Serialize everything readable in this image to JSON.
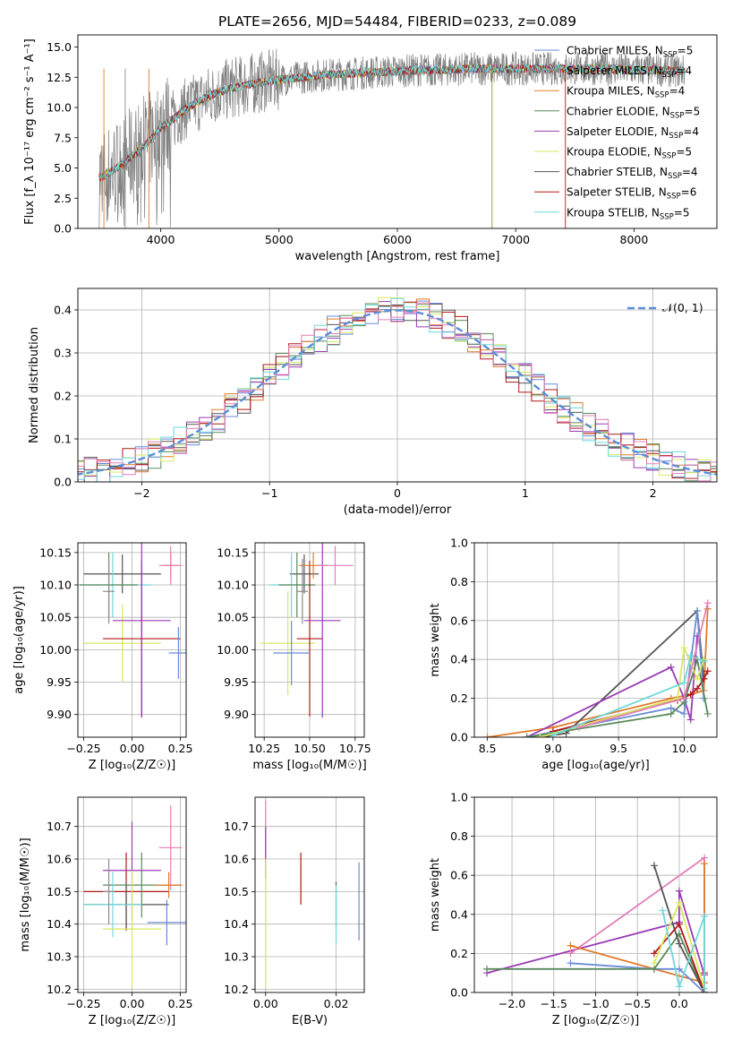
{
  "title": "PLATE=2656, MJD=54484, FIBERID=0233, z=0.089",
  "colors": {
    "Chabrier MILES": "#6a8cd6",
    "Salpeter MILES": "#8c8c8c",
    "Kroupa MILES": "#e07b2a",
    "Chabrier ELODIE": "#5a8a5a",
    "Salpeter ELODIE": "#9a3cb5",
    "Kroupa ELODIE": "#d8e862",
    "Chabrier STELIB": "#555555",
    "Salpeter STELIB": "#b01818",
    "Kroupa STELIB": "#6fd8dc",
    "pink": "#e27fb8",
    "gaussian": "#5b8fd8"
  },
  "chart_data": [
    {
      "id": "spectrum",
      "type": "line",
      "title": "PLATE=2656, MJD=54484, FIBERID=0233, z=0.089",
      "xlabel": "wavelength [Angstrom, rest frame]",
      "ylabel": "Flux [f_λ 10⁻¹⁷ erg cm⁻² s⁻¹ A⁻¹]",
      "xlim": [
        3300,
        8700
      ],
      "ylim": [
        0,
        16
      ],
      "xticks": [
        "4000",
        "5000",
        "6000",
        "7000",
        "8000"
      ],
      "yticks": [
        "0.0",
        "2.5",
        "5.0",
        "7.5",
        "10.0",
        "12.5",
        "15.0"
      ],
      "grid": false,
      "legend_position": "right",
      "legend": [
        {
          "name": "Chabrier MILES",
          "nssp": "5"
        },
        {
          "name": "Salpeter MILES",
          "nssp": "4"
        },
        {
          "name": "Kroupa MILES",
          "nssp": "4"
        },
        {
          "name": "Chabrier ELODIE",
          "nssp": "5"
        },
        {
          "name": "Salpeter ELODIE",
          "nssp": "4"
        },
        {
          "name": "Kroupa ELODIE",
          "nssp": "5"
        },
        {
          "name": "Chabrier STELIB",
          "nssp": "4"
        },
        {
          "name": "Salpeter STELIB",
          "nssp": "6"
        },
        {
          "name": "Kroupa STELIB",
          "nssp": "5"
        }
      ],
      "continuum_x": [
        3500,
        3600,
        3700,
        3800,
        3900,
        4000,
        4100,
        4200,
        4300,
        4400,
        4500,
        4600,
        4700,
        4800,
        4900,
        5000,
        5200,
        5400,
        5600,
        5800,
        6000,
        6200,
        6400,
        6600,
        6800,
        7000,
        7200,
        7400,
        7600,
        7800,
        8000,
        8200,
        8400
      ],
      "continuum_y": [
        4.2,
        4.8,
        5.5,
        6.3,
        7.2,
        8.3,
        9.0,
        9.8,
        10.4,
        10.9,
        11.3,
        11.6,
        11.8,
        12.0,
        12.2,
        12.3,
        12.5,
        12.7,
        12.8,
        12.9,
        13.0,
        13.1,
        13.1,
        13.2,
        13.2,
        13.2,
        13.2,
        13.2,
        13.2,
        13.2,
        13.1,
        13.1,
        13.0
      ]
    },
    {
      "id": "residuals",
      "type": "line",
      "xlabel": "(data-model)/error",
      "ylabel": "Normed distribution",
      "xlim": [
        -2.5,
        2.5
      ],
      "ylim": [
        0,
        0.45
      ],
      "xticks": [
        "−2",
        "−1",
        "0",
        "1",
        "2"
      ],
      "yticks": [
        "0.0",
        "0.1",
        "0.2",
        "0.3",
        "0.4"
      ],
      "grid": true,
      "legend_position": "top-right",
      "legend": [
        "𝒩(0, 1)"
      ],
      "series": [
        {
          "name": "𝒩(0, 1)",
          "style": "dashed",
          "function": "standard normal pdf"
        }
      ]
    },
    {
      "id": "age-vs-Z",
      "type": "scatter",
      "xlabel": "Z [log₁₀(Z/Z☉)]",
      "ylabel": "age  [log₁₀(age/yr)]",
      "xlim": [
        -0.28,
        0.28
      ],
      "ylim": [
        9.865,
        10.165
      ],
      "xticks": [
        "−0.25",
        "0.00",
        "0.25"
      ],
      "yticks": [
        "9.90",
        "9.95",
        "10.00",
        "10.05",
        "10.10",
        "10.15"
      ],
      "grid": true,
      "points": [
        {
          "series": "Chabrier STELIB",
          "x": -0.05,
          "y": 10.117,
          "xerr": 0.2,
          "yerr": 0.03
        },
        {
          "series": "Kroupa STELIB",
          "x": -0.1,
          "y": 10.1,
          "xerr": 0.2,
          "yerr": 0.05
        },
        {
          "series": "Chabrier ELODIE",
          "x": -0.12,
          "y": 10.1,
          "xerr": 0.15,
          "yerr": 0.05
        },
        {
          "series": "Kroupa ELODIE",
          "x": -0.05,
          "y": 10.01,
          "xerr": 0.2,
          "yerr": 0.06
        },
        {
          "series": "Salpeter STELIB",
          "x": 0.05,
          "y": 10.017,
          "xerr": 0.2,
          "yerr": 0.12
        },
        {
          "series": "Salpeter ELODIE",
          "x": 0.05,
          "y": 10.045,
          "xerr": 0.15,
          "yerr": 0.15
        },
        {
          "series": "Chabrier MILES",
          "x": 0.24,
          "y": 9.995,
          "xerr": 0.05,
          "yerr": 0.04
        },
        {
          "series": "Kroupa MILES",
          "x": 0.2,
          "y": 10.13,
          "xerr": 0.04,
          "yerr": 0.02
        },
        {
          "series": "pink",
          "x": 0.2,
          "y": 10.13,
          "xerr": 0.06,
          "yerr": 0.03
        },
        {
          "series": "Salpeter MILES",
          "x": -0.12,
          "y": 10.09,
          "xerr": 0.03,
          "yerr": 0.05
        }
      ]
    },
    {
      "id": "age-vs-mass",
      "type": "scatter",
      "xlabel": "mass [log₁₀(M/M☉)]",
      "ylabel": "",
      "xlim": [
        10.2,
        10.8
      ],
      "ylim": [
        9.865,
        10.165
      ],
      "xticks": [
        "10.25",
        "10.50",
        "10.75"
      ],
      "yticks": [
        "9.90",
        "9.95",
        "10.00",
        "10.05",
        "10.10",
        "10.15"
      ],
      "grid": true,
      "points": [
        {
          "series": "Chabrier STELIB",
          "x": 10.47,
          "y": 10.117,
          "xerr": 0.08,
          "yerr": 0.03
        },
        {
          "series": "Kroupa STELIB",
          "x": 10.4,
          "y": 10.1,
          "xerr": 0.12,
          "yerr": 0.05
        },
        {
          "series": "Chabrier ELODIE",
          "x": 10.43,
          "y": 10.1,
          "xerr": 0.1,
          "yerr": 0.05
        },
        {
          "series": "Kroupa ELODIE",
          "x": 10.38,
          "y": 10.01,
          "xerr": 0.15,
          "yerr": 0.08
        },
        {
          "series": "Salpeter STELIB",
          "x": 10.5,
          "y": 10.017,
          "xerr": 0.07,
          "yerr": 0.12
        },
        {
          "series": "Salpeter ELODIE",
          "x": 10.57,
          "y": 10.045,
          "xerr": 0.1,
          "yerr": 0.15
        },
        {
          "series": "Chabrier MILES",
          "x": 10.4,
          "y": 9.995,
          "xerr": 0.1,
          "yerr": 0.05
        },
        {
          "series": "Kroupa MILES",
          "x": 10.52,
          "y": 10.13,
          "xerr": 0.08,
          "yerr": 0.02
        },
        {
          "series": "pink",
          "x": 10.64,
          "y": 10.13,
          "xerr": 0.1,
          "yerr": 0.03
        },
        {
          "series": "Salpeter MILES",
          "x": 10.46,
          "y": 10.09,
          "xerr": 0.03,
          "yerr": 0.05
        }
      ]
    },
    {
      "id": "weight-vs-age",
      "type": "line",
      "xlabel": "age  [log₁₀(age/yr)]",
      "ylabel": "mass weight",
      "xlim": [
        8.4,
        10.25
      ],
      "ylim": [
        0,
        1.0
      ],
      "xticks": [
        "8.5",
        "9.0",
        "9.5",
        "10.0"
      ],
      "yticks": [
        "0.0",
        "0.2",
        "0.4",
        "0.6",
        "0.8",
        "1.0"
      ],
      "grid": true,
      "series": [
        {
          "name": "Kroupa MILES",
          "x": [
            8.5,
            9.0,
            9.9,
            10.05,
            10.15,
            10.18
          ],
          "y": [
            0.0,
            0.05,
            0.2,
            0.22,
            0.24,
            0.66
          ]
        },
        {
          "name": "Chabrier STELIB",
          "x": [
            8.9,
            9.1,
            10.1,
            10.15
          ],
          "y": [
            0.0,
            0.02,
            0.65,
            0.3
          ]
        },
        {
          "name": "Salpeter ELODIE",
          "x": [
            8.8,
            9.9,
            10.0,
            10.05,
            10.1
          ],
          "y": [
            0.0,
            0.36,
            0.2,
            0.09,
            0.52
          ]
        },
        {
          "name": "Chabrier MILES",
          "x": [
            8.8,
            9.9,
            10.0,
            10.1,
            10.15
          ],
          "y": [
            0.0,
            0.15,
            0.12,
            0.65,
            0.2
          ]
        },
        {
          "name": "Salpeter STELIB",
          "x": [
            9.0,
            9.95,
            10.05,
            10.1,
            10.15,
            10.18
          ],
          "y": [
            0.03,
            0.19,
            0.22,
            0.25,
            0.3,
            0.34
          ]
        },
        {
          "name": "Chabrier ELODIE",
          "x": [
            8.8,
            9.9,
            10.0,
            10.1,
            10.18
          ],
          "y": [
            0.0,
            0.12,
            0.18,
            0.4,
            0.12
          ]
        },
        {
          "name": "Kroupa ELODIE",
          "x": [
            8.9,
            9.95,
            10.0,
            10.1,
            10.15
          ],
          "y": [
            0.0,
            0.2,
            0.46,
            0.3,
            0.4
          ]
        },
        {
          "name": "Kroupa STELIB",
          "x": [
            9.0,
            10.0,
            10.05,
            10.15
          ],
          "y": [
            0.01,
            0.28,
            0.42,
            0.39
          ]
        },
        {
          "name": "pink",
          "x": [
            9.2,
            10.0,
            10.18
          ],
          "y": [
            0.05,
            0.2,
            0.69
          ]
        }
      ]
    },
    {
      "id": "mass-vs-Z",
      "type": "scatter",
      "xlabel": "Z [log₁₀(Z/Z☉)]",
      "ylabel": "mass [log₁₀(M/M☉)]",
      "xlim": [
        -0.28,
        0.28
      ],
      "ylim": [
        10.19,
        10.79
      ],
      "xticks": [
        "−0.25",
        "0.00",
        "0.25"
      ],
      "yticks": [
        "10.2",
        "10.3",
        "10.4",
        "10.5",
        "10.6",
        "10.7"
      ],
      "grid": true,
      "points": [
        {
          "series": "Salpeter STELIB",
          "x": -0.03,
          "y": 10.5,
          "xerr": 0.22,
          "yerr": 0.12
        },
        {
          "series": "Chabrier STELIB",
          "x": -0.03,
          "y": 10.46,
          "xerr": 0.22,
          "yerr": 0.07
        },
        {
          "series": "Chabrier ELODIE",
          "x": 0.05,
          "y": 10.52,
          "xerr": 0.2,
          "yerr": 0.1
        },
        {
          "series": "Kroupa STELIB",
          "x": -0.1,
          "y": 10.46,
          "xerr": 0.15,
          "yerr": 0.1
        },
        {
          "series": "Salpeter ELODIE",
          "x": 0.0,
          "y": 10.565,
          "xerr": 0.15,
          "yerr": 0.15
        },
        {
          "series": "Kroupa ELODIE",
          "x": 0.0,
          "y": 10.385,
          "xerr": 0.15,
          "yerr": 0.18
        },
        {
          "series": "Chabrier MILES",
          "x": 0.18,
          "y": 10.405,
          "xerr": 0.1,
          "yerr": 0.07
        },
        {
          "series": "Kroupa MILES",
          "x": 0.19,
          "y": 10.52,
          "xerr": 0.07,
          "yerr": 0.04
        },
        {
          "series": "pink",
          "x": 0.2,
          "y": 10.635,
          "xerr": 0.06,
          "yerr": 0.13
        },
        {
          "series": "Salpeter MILES",
          "x": -0.12,
          "y": 10.5,
          "xerr": 0.03,
          "yerr": 0.1
        }
      ]
    },
    {
      "id": "mass-vs-EBV",
      "type": "scatter",
      "xlabel": "E(B-V)",
      "ylabel": "",
      "xlim": [
        -0.003,
        0.028
      ],
      "ylim": [
        10.19,
        10.79
      ],
      "xticks": [
        "0.00",
        "0.02"
      ],
      "yticks": [
        "10.2",
        "10.3",
        "10.4",
        "10.5",
        "10.6",
        "10.7"
      ],
      "grid": true,
      "points": [
        {
          "series": "pink",
          "x": 0.0,
          "y": 10.68,
          "yerr": 0.1
        },
        {
          "series": "Salpeter ELODIE",
          "x": 0.0,
          "y": 10.62,
          "yerr": 0.08
        },
        {
          "series": "Kroupa ELODIE",
          "x": 0.0,
          "y": 10.4,
          "yerr": 0.2
        },
        {
          "series": "Salpeter STELIB",
          "x": 0.01,
          "y": 10.54,
          "yerr": 0.08
        },
        {
          "series": "Chabrier STELIB",
          "x": 0.02,
          "y": 10.46,
          "yerr": 0.07
        },
        {
          "series": "Kroupa STELIB",
          "x": 0.02,
          "y": 10.43,
          "yerr": 0.09
        },
        {
          "series": "Chabrier MILES",
          "x": 0.0265,
          "y": 10.47,
          "yerr": 0.12
        }
      ]
    },
    {
      "id": "weight-vs-Z",
      "type": "line",
      "xlabel": "Z [log₁₀(Z/Z☉)]",
      "ylabel": "mass weight",
      "xlim": [
        -2.45,
        0.45
      ],
      "ylim": [
        0,
        1.0
      ],
      "xticks": [
        "−2.0",
        "−1.5",
        "−1.0",
        "−0.5",
        "0.0"
      ],
      "yticks": [
        "0.0",
        "0.2",
        "0.4",
        "0.6",
        "0.8",
        "1.0"
      ],
      "grid": true,
      "series": [
        {
          "name": "Salpeter ELODIE",
          "x": [
            -2.3,
            0.0,
            0.0,
            0.3
          ],
          "y": [
            0.1,
            0.36,
            0.52,
            0.09
          ]
        },
        {
          "name": "pink",
          "x": [
            -1.3,
            0.3,
            0.3
          ],
          "y": [
            0.2,
            0.69,
            0.05
          ]
        },
        {
          "name": "Kroupa MILES",
          "x": [
            -1.3,
            -0.3,
            0.3,
            0.3
          ],
          "y": [
            0.24,
            0.12,
            0.05,
            0.66
          ]
        },
        {
          "name": "Chabrier MILES",
          "x": [
            -1.3,
            -0.3,
            0.0,
            0.3
          ],
          "y": [
            0.15,
            0.12,
            0.12,
            0.0
          ]
        },
        {
          "name": "Chabrier ELODIE",
          "x": [
            -2.3,
            -0.3,
            0.0,
            0.3
          ],
          "y": [
            0.12,
            0.12,
            0.3,
            0.0
          ]
        },
        {
          "name": "Chabrier STELIB",
          "x": [
            -0.3,
            0.0,
            0.3
          ],
          "y": [
            0.65,
            0.25,
            0.0
          ]
        },
        {
          "name": "Salpeter STELIB",
          "x": [
            -0.3,
            0.0,
            0.3,
            0.3
          ],
          "y": [
            0.2,
            0.35,
            0.0,
            0.1
          ]
        },
        {
          "name": "Kroupa ELODIE",
          "x": [
            -0.3,
            0.0,
            0.3
          ],
          "y": [
            0.15,
            0.46,
            0.02
          ]
        },
        {
          "name": "Kroupa STELIB",
          "x": [
            -0.2,
            0.0,
            0.3,
            0.3
          ],
          "y": [
            0.42,
            0.03,
            0.39,
            0.02
          ]
        }
      ]
    }
  ]
}
